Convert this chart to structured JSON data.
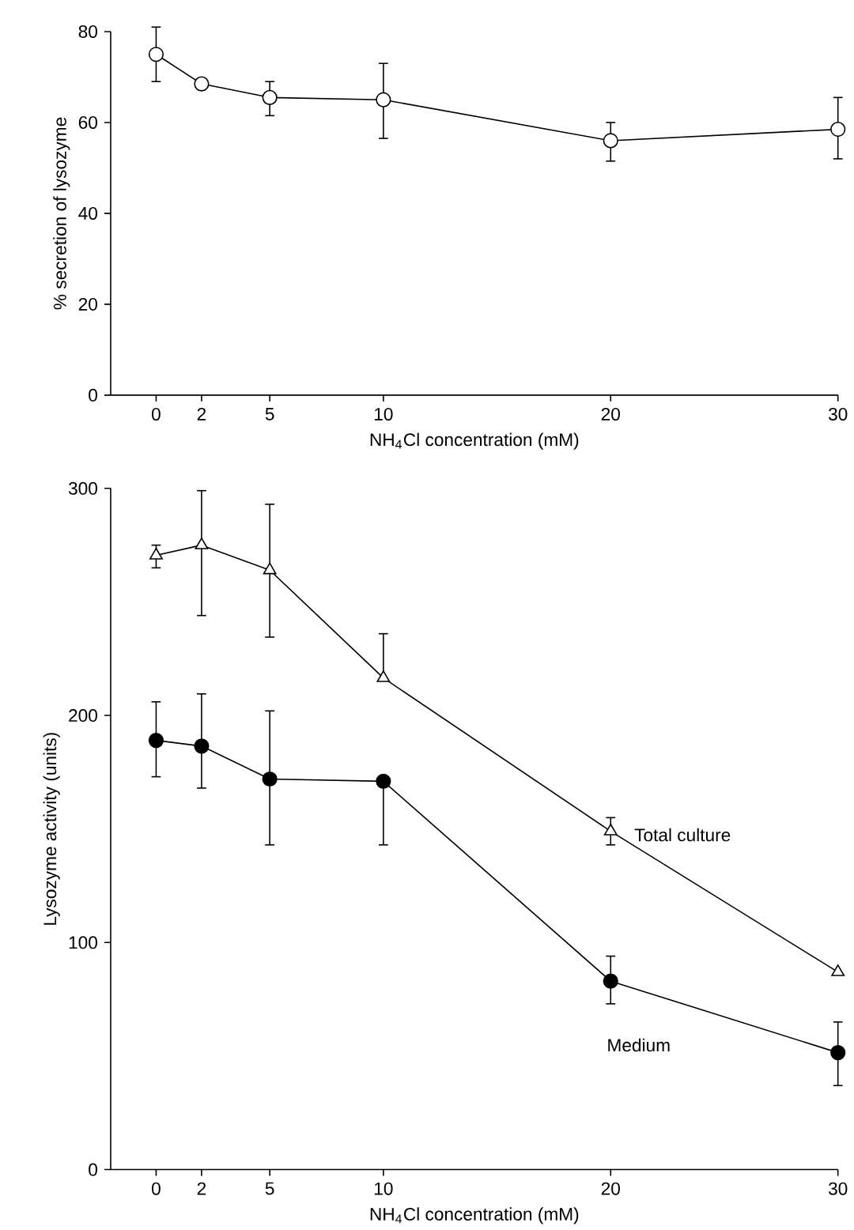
{
  "chart_data": [
    {
      "type": "line",
      "ylabel": "% secretion of lysozyme",
      "xlabel": "NH$_{4}$Cl concentration (mM)",
      "xlim": [
        -2,
        30
      ],
      "xticks": [
        0,
        2,
        5,
        10,
        20,
        30
      ],
      "ylim": [
        0,
        80
      ],
      "yticks": [
        0,
        20,
        40,
        60,
        80
      ],
      "marker": "circle",
      "series": [
        {
          "color": "#000000",
          "x": [
            0,
            2,
            5,
            10,
            20,
            30
          ],
          "values": [
            75,
            68.5,
            65.5,
            65,
            56,
            58.5
          ],
          "errors": [
            [
              69,
              81
            ],
            null,
            [
              61.5,
              69
            ],
            [
              56.5,
              73
            ],
            [
              51.5,
              60
            ],
            [
              52,
              65.5
            ]
          ]
        }
      ]
    },
    {
      "type": "line",
      "ylabel": "Lysozyme activity (units)",
      "xlabel": "NH$_{4}$Cl concentration (mM)",
      "xlim": [
        -2,
        30
      ],
      "xticks": [
        0,
        2,
        5,
        10,
        20,
        30
      ],
      "ylim": [
        0,
        300
      ],
      "yticks": [
        0,
        100,
        200,
        300
      ],
      "series": [
        {
          "name": "Total culture",
          "marker": "triangle",
          "color": "#000000",
          "x": [
            0,
            2,
            5,
            10,
            20,
            30
          ],
          "values": [
            270.5,
            275,
            264,
            216.5,
            149,
            87
          ],
          "errors": [
            [
              265,
              275
            ],
            [
              244,
              299
            ],
            [
              234.5,
              293
            ],
            [
              216.5,
              236
            ],
            [
              143,
              155
            ],
            null
          ]
        },
        {
          "name": "Medium",
          "marker": "circle",
          "color": "#000000",
          "colors": [
            "#000000",
            "#000000",
            "#000000",
            "#000000",
            "#000000",
            "#000000"
          ],
          "x": [
            0,
            2,
            5,
            10,
            20,
            30
          ],
          "values": [
            189,
            186.5,
            172,
            171,
            83,
            51.5
          ],
          "errors": [
            [
              173,
              206
            ],
            [
              168,
              209.5
            ],
            [
              143,
              202
            ],
            [
              143,
              171
            ],
            [
              73,
              94
            ],
            [
              37,
              65
            ]
          ]
        }
      ]
    }
  ]
}
